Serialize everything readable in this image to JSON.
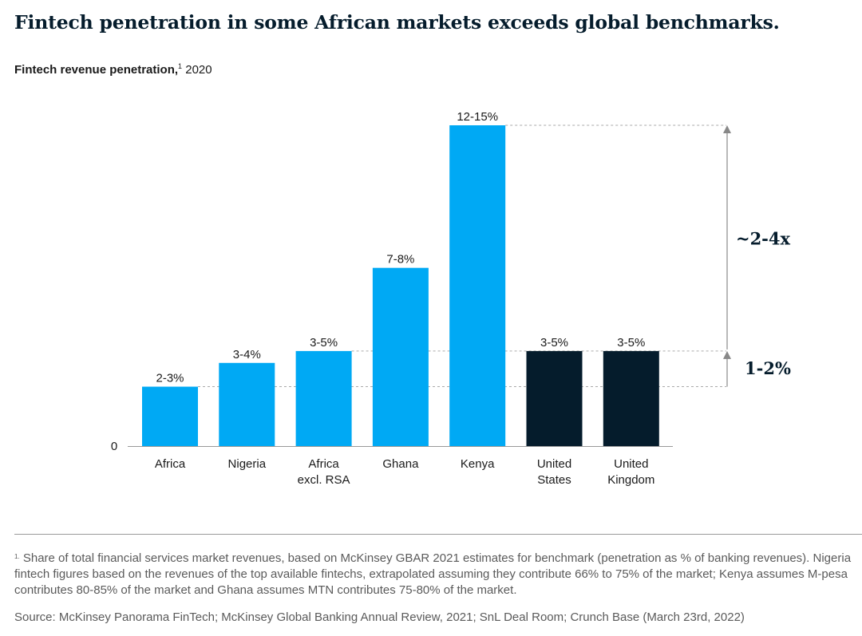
{
  "title": "Fintech penetration in some African markets exceeds global benchmarks.",
  "subtitle": {
    "bold": "Fintech revenue penetration,",
    "sup": "1",
    "year": "2020"
  },
  "chart_data": {
    "type": "bar",
    "categories": [
      [
        "Africa"
      ],
      [
        "Nigeria"
      ],
      [
        "Africa",
        "excl. RSA"
      ],
      [
        "Ghana"
      ],
      [
        "Kenya"
      ],
      [
        "United",
        "States"
      ],
      [
        "United",
        "Kingdom"
      ]
    ],
    "ranges": [
      "2-3%",
      "3-4%",
      "3-5%",
      "7-8%",
      "12-15%",
      "3-5%",
      "3-5%"
    ],
    "values": [
      2.5,
      3.5,
      4.0,
      7.5,
      13.5,
      4.0,
      4.0
    ],
    "series_type": [
      "africa",
      "africa",
      "africa",
      "africa",
      "africa",
      "benchmark",
      "benchmark"
    ],
    "ylim": [
      0,
      15
    ],
    "y_tick_labels": [
      "0"
    ],
    "colors": {
      "africa": "#00a9f4",
      "benchmark": "#051c2c",
      "axis": "#999999",
      "guide": "#aaaaaa",
      "arrow": "#888888"
    },
    "annotations": [
      {
        "text": "~2-4x",
        "from_value": 4.0,
        "to_value": 13.5
      },
      {
        "text": "1-2%",
        "from_value": 2.5,
        "to_value": 4.0
      }
    ]
  },
  "footnote": {
    "marker": "1.",
    "text": "Share of total financial services market revenues, based on McKinsey GBAR 2021 estimates for benchmark (penetration as % of banking revenues). Nigeria fintech figures based on the revenues of the top available fintechs, extrapolated assuming they contribute 66% to 75% of the market; Kenya assumes M-pesa contributes 80-85% of the market and Ghana assumes MTN contributes 75-80% of the market."
  },
  "source": "Source: McKinsey Panorama FinTech; McKinsey Global Banking Annual Review, 2021; SnL Deal Room; Crunch Base (March 23rd, 2022)"
}
